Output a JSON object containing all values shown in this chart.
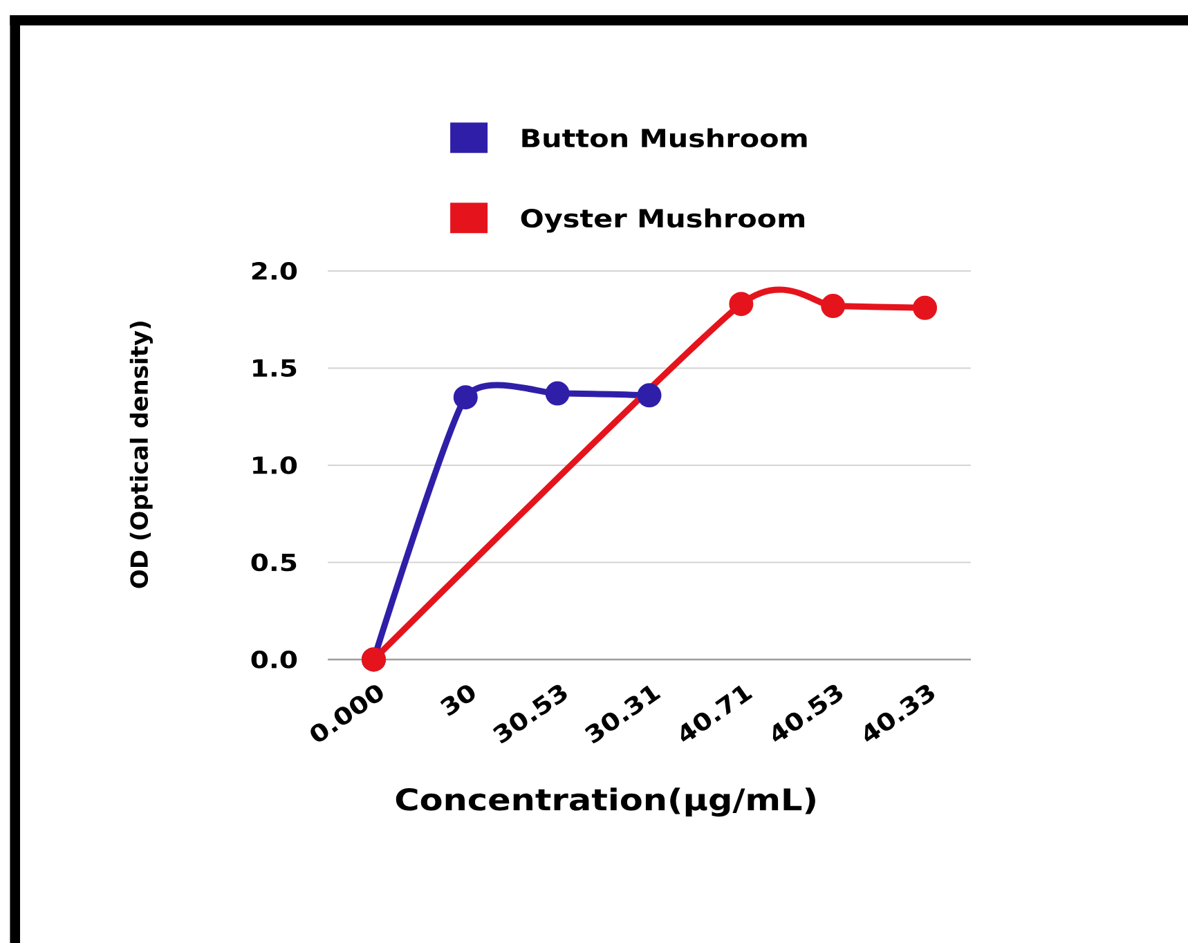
{
  "chart_data": {
    "type": "line",
    "xlabel": "Concentration(μg/mL)",
    "ylabel": "OD (Optical density)",
    "categories": [
      "0.000",
      "30",
      "30.53",
      "30.31",
      "40.71",
      "40.53",
      "40.33"
    ],
    "series": [
      {
        "name": "Button Mushroom",
        "color": "#2f1fa8",
        "values": [
          0,
          1.35,
          1.37,
          1.36,
          null,
          null,
          null
        ]
      },
      {
        "name": "Oyster Mushroom",
        "color": "#e5141c",
        "values": [
          0,
          null,
          null,
          null,
          1.83,
          1.82,
          1.81
        ]
      }
    ],
    "ylim": [
      0,
      2
    ],
    "yticks": [
      {
        "value": 0,
        "label": "0.0"
      },
      {
        "value": 0.5,
        "label": "0.5"
      },
      {
        "value": 1,
        "label": "1.0"
      },
      {
        "value": 1.5,
        "label": "1.5"
      },
      {
        "value": 2,
        "label": "2.0"
      }
    ],
    "grid": "y",
    "legend": "top",
    "marker": "circle",
    "line_style": "solid"
  }
}
